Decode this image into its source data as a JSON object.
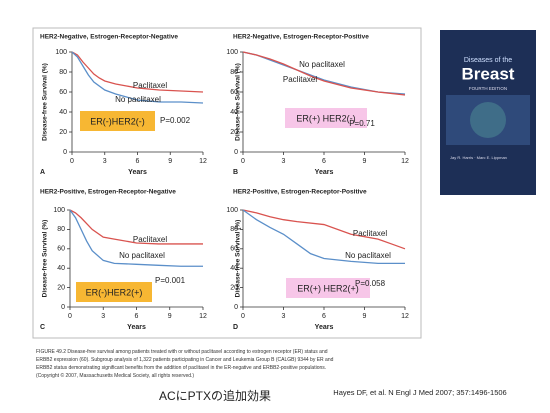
{
  "chart_data": [
    {
      "type": "line",
      "title": "HER2-Negative, Estrogen-Receptor-Negative",
      "ylabel": "Disease-free Survival (%)",
      "xlabel": "Years",
      "xlim": [
        0,
        12
      ],
      "xticks": [
        0,
        3,
        6,
        9,
        12
      ],
      "ylim": [
        0,
        100
      ],
      "yticks": [
        0,
        20,
        40,
        60,
        80,
        100
      ],
      "label": "ER(-)HER2(-)",
      "label_color": "#f7b733",
      "p_value": "P=0.002",
      "panel": "A",
      "series": [
        {
          "name": "Paclitaxel",
          "color": "#d9534f",
          "x": [
            0,
            0.5,
            1,
            1.5,
            2,
            2.5,
            3,
            4,
            5,
            6,
            8,
            10,
            12
          ],
          "values": [
            100,
            97,
            90,
            84,
            78,
            74,
            71,
            68,
            66,
            64,
            62,
            61,
            60
          ]
        },
        {
          "name": "No paclitaxel",
          "color": "#5b8fc9",
          "x": [
            0,
            0.5,
            1,
            1.5,
            2,
            3,
            4,
            5,
            6,
            8,
            10,
            12
          ],
          "values": [
            100,
            95,
            86,
            77,
            70,
            62,
            58,
            55,
            52,
            50,
            50,
            49
          ]
        }
      ]
    },
    {
      "type": "line",
      "title": "HER2-Negative, Estrogen-Receptor-Positive",
      "ylabel": "Disease-free Survival (%)",
      "xlabel": "Years",
      "xlim": [
        0,
        12
      ],
      "xticks": [
        0,
        3,
        6,
        9,
        12
      ],
      "ylim": [
        0,
        100
      ],
      "yticks": [
        0,
        20,
        40,
        60,
        80,
        100
      ],
      "label": "ER(+)  HER2(-)",
      "label_color": "#f7c6e8",
      "p_value": "P=0.71",
      "panel": "B",
      "series": [
        {
          "name": "No paclitaxel",
          "color": "#5b8fc9",
          "x": [
            0,
            1,
            2,
            3,
            4,
            5,
            6,
            8,
            10,
            12
          ],
          "values": [
            100,
            97,
            92,
            87,
            82,
            77,
            72,
            65,
            60,
            58
          ]
        },
        {
          "name": "Paclitaxel",
          "color": "#d9534f",
          "x": [
            0,
            1,
            2,
            3,
            4,
            5,
            6,
            8,
            10,
            12
          ],
          "values": [
            100,
            97,
            93,
            88,
            82,
            76,
            71,
            64,
            60,
            57
          ]
        }
      ]
    },
    {
      "type": "line",
      "title": "HER2-Positive, Estrogen-Receptor-Negative",
      "ylabel": "Disease-free Survival (%)",
      "xlabel": "Years",
      "xlim": [
        0,
        12
      ],
      "xticks": [
        0,
        3,
        6,
        9,
        12
      ],
      "ylim": [
        0,
        100
      ],
      "yticks": [
        0,
        20,
        40,
        60,
        80,
        100
      ],
      "label": "ER(-)HER2(+)",
      "label_color": "#f7b733",
      "p_value": "P=0.001",
      "panel": "C",
      "series": [
        {
          "name": "Paclitaxel",
          "color": "#d9534f",
          "x": [
            0,
            0.5,
            1,
            1.5,
            2,
            3,
            4,
            6,
            8,
            10,
            12
          ],
          "values": [
            100,
            97,
            92,
            86,
            80,
            72,
            70,
            66,
            65,
            65,
            65
          ]
        },
        {
          "name": "No paclitaxel",
          "color": "#5b8fc9",
          "x": [
            0,
            0.5,
            1,
            1.5,
            2,
            3,
            4,
            6,
            8,
            10,
            12
          ],
          "values": [
            100,
            92,
            80,
            68,
            58,
            48,
            45,
            44,
            43,
            42,
            42
          ]
        }
      ]
    },
    {
      "type": "line",
      "title": "HER2-Positive, Estrogen-Receptor-Positive",
      "ylabel": "Disease-free Survival (%)",
      "xlabel": "Years",
      "xlim": [
        0,
        12
      ],
      "xticks": [
        0,
        3,
        6,
        9,
        12
      ],
      "ylim": [
        0,
        100
      ],
      "yticks": [
        0,
        20,
        40,
        60,
        80,
        100
      ],
      "label": "ER(+)  HER2(+)",
      "label_color": "#f7c6e8",
      "p_value": "P=0.058",
      "panel": "D",
      "series": [
        {
          "name": "Paclitaxel",
          "color": "#d9534f",
          "x": [
            0,
            1,
            2,
            3,
            4,
            6,
            8,
            10,
            11,
            12
          ],
          "values": [
            100,
            97,
            93,
            90,
            88,
            85,
            75,
            70,
            65,
            60
          ]
        },
        {
          "name": "No paclitaxel",
          "color": "#5b8fc9",
          "x": [
            0,
            1,
            2,
            3,
            4,
            5,
            6,
            8,
            10,
            12
          ],
          "values": [
            100,
            90,
            82,
            75,
            65,
            55,
            50,
            47,
            45,
            45
          ]
        }
      ]
    }
  ],
  "caption": [
    "FIGURE 49.2 Disease-free survival among patients treated with or without paclitaxel according to estrogen receptor (ER) status and",
    "ERBB2 expression (60). Subgroup analysis of 1,322 patients participating in Cancer and Leukemia Group B (CALGB) 9344 by ER and",
    "ERBB2 status demonstrating significant benefits from the addition of paclitaxel in the ER-negative and ERBB2-positive populations.",
    "(Copyright © 2007, Massachusetts Medical Society, all rights reserved.)"
  ],
  "heading": "ACにPTXの追加効果",
  "citation": "Hayes DF, et al. N Engl J Med 2007; 357:1496-1506",
  "book": {
    "subtitle": "Diseases of the",
    "title": "Breast",
    "edition": "FOURTH EDITION",
    "authors": "Jay R. Harris · Marc E. Lippman"
  }
}
